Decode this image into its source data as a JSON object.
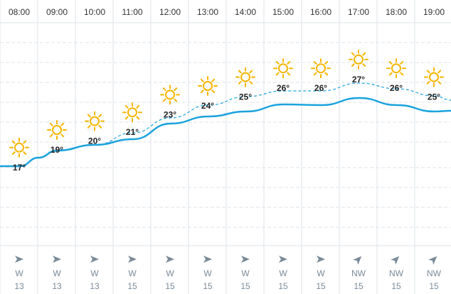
{
  "forecast": {
    "hours": [
      "08:00",
      "09:00",
      "10:00",
      "11:00",
      "12:00",
      "13:00",
      "14:00",
      "15:00",
      "16:00",
      "17:00",
      "18:00",
      "19:00"
    ],
    "temperatures": [
      "17°",
      "19°",
      "20°",
      "21°",
      "23°",
      "24°",
      "25°",
      "26°",
      "26°",
      "27°",
      "26°",
      "25°"
    ],
    "weather_icon": "sun-icon",
    "wind_directions": [
      "W",
      "W",
      "W",
      "W",
      "W",
      "W",
      "W",
      "W",
      "W",
      "NW",
      "NW",
      "NW"
    ],
    "wind_speeds": [
      "13",
      "13",
      "13",
      "15",
      "15",
      "15",
      "15",
      "15",
      "15",
      "15",
      "15",
      "15"
    ],
    "colors": {
      "sun": "#f7b500",
      "temperature_line": "#1aa3dd",
      "grid": "#dde3ea",
      "wind_text": "#7a8a99"
    }
  },
  "chart_data": {
    "type": "line",
    "x": [
      "08:00",
      "09:00",
      "10:00",
      "11:00",
      "12:00",
      "13:00",
      "14:00",
      "15:00",
      "16:00",
      "17:00",
      "18:00",
      "19:00"
    ],
    "series": [
      {
        "values": [
          17,
          19,
          20,
          21,
          23,
          24,
          25,
          26,
          26,
          27,
          26,
          25
        ],
        "style": "solid"
      },
      {
        "values": [
          17,
          19,
          20,
          21,
          23,
          24,
          25,
          26,
          26,
          27,
          26,
          25
        ],
        "style": "dashed"
      }
    ],
    "grid": true
  }
}
